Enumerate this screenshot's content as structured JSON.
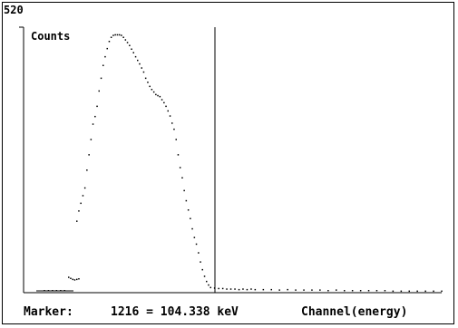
{
  "window": {
    "y_max_label": "520"
  },
  "status": {
    "marker_label": "Marker:",
    "marker_value": "1216 = 104.338 keV",
    "x_axis_label": "Channel(energy)"
  },
  "chart_data": {
    "type": "scatter",
    "title": "",
    "ylabel": "Counts",
    "xlabel": "Channel(energy)",
    "ylim": [
      0,
      520
    ],
    "grid": false,
    "marker": {
      "channel": 1216,
      "energy_kev": 104.338
    },
    "colors": {
      "points": "#000000",
      "axes": "#000000",
      "marker_line": "#000000"
    },
    "points": [
      [
        0.08,
        30
      ],
      [
        0.085,
        28
      ],
      [
        0.09,
        26
      ],
      [
        0.095,
        25
      ],
      [
        0.1,
        26
      ],
      [
        0.105,
        27
      ],
      [
        0.1,
        140
      ],
      [
        0.105,
        160
      ],
      [
        0.11,
        175
      ],
      [
        0.115,
        190
      ],
      [
        0.12,
        205
      ],
      [
        0.125,
        240
      ],
      [
        0.13,
        270
      ],
      [
        0.135,
        300
      ],
      [
        0.14,
        330
      ],
      [
        0.145,
        345
      ],
      [
        0.15,
        365
      ],
      [
        0.155,
        395
      ],
      [
        0.16,
        420
      ],
      [
        0.165,
        445
      ],
      [
        0.17,
        462
      ],
      [
        0.175,
        478
      ],
      [
        0.18,
        492
      ],
      [
        0.185,
        500
      ],
      [
        0.19,
        504
      ],
      [
        0.195,
        505
      ],
      [
        0.2,
        505
      ],
      [
        0.205,
        505
      ],
      [
        0.21,
        504
      ],
      [
        0.215,
        500
      ],
      [
        0.22,
        495
      ],
      [
        0.225,
        490
      ],
      [
        0.23,
        484
      ],
      [
        0.235,
        477
      ],
      [
        0.24,
        470
      ],
      [
        0.245,
        462
      ],
      [
        0.25,
        455
      ],
      [
        0.255,
        448
      ],
      [
        0.26,
        440
      ],
      [
        0.265,
        432
      ],
      [
        0.27,
        420
      ],
      [
        0.275,
        412
      ],
      [
        0.28,
        404
      ],
      [
        0.285,
        398
      ],
      [
        0.29,
        393
      ],
      [
        0.295,
        388
      ],
      [
        0.3,
        386
      ],
      [
        0.305,
        384
      ],
      [
        0.31,
        378
      ],
      [
        0.315,
        372
      ],
      [
        0.32,
        365
      ],
      [
        0.325,
        356
      ],
      [
        0.33,
        346
      ],
      [
        0.335,
        332
      ],
      [
        0.34,
        320
      ],
      [
        0.345,
        300
      ],
      [
        0.35,
        270
      ],
      [
        0.355,
        245
      ],
      [
        0.36,
        225
      ],
      [
        0.365,
        200
      ],
      [
        0.37,
        180
      ],
      [
        0.375,
        162
      ],
      [
        0.38,
        145
      ],
      [
        0.385,
        125
      ],
      [
        0.39,
        108
      ],
      [
        0.395,
        95
      ],
      [
        0.4,
        78
      ],
      [
        0.405,
        60
      ],
      [
        0.41,
        45
      ],
      [
        0.415,
        32
      ],
      [
        0.42,
        22
      ],
      [
        0.425,
        15
      ],
      [
        0.43,
        10
      ],
      [
        0.44,
        9
      ],
      [
        0.45,
        8
      ],
      [
        0.46,
        8
      ],
      [
        0.47,
        7
      ],
      [
        0.48,
        7
      ],
      [
        0.49,
        7
      ],
      [
        0.5,
        6
      ],
      [
        0.51,
        7
      ],
      [
        0.52,
        6
      ],
      [
        0.53,
        7
      ],
      [
        0.54,
        6
      ],
      [
        0.56,
        6
      ],
      [
        0.58,
        6
      ],
      [
        0.6,
        5
      ],
      [
        0.62,
        6
      ],
      [
        0.64,
        5
      ],
      [
        0.66,
        5
      ],
      [
        0.68,
        5
      ],
      [
        0.7,
        5
      ],
      [
        0.72,
        4
      ],
      [
        0.74,
        5
      ],
      [
        0.76,
        4
      ],
      [
        0.78,
        4
      ],
      [
        0.8,
        4
      ],
      [
        0.82,
        4
      ],
      [
        0.84,
        4
      ],
      [
        0.86,
        4
      ],
      [
        0.88,
        3
      ],
      [
        0.9,
        3
      ],
      [
        0.92,
        3
      ],
      [
        0.94,
        3
      ],
      [
        0.96,
        3
      ],
      [
        0.98,
        3
      ],
      [
        1.0,
        3
      ],
      [
        0.02,
        4
      ],
      [
        0.03,
        4
      ],
      [
        0.04,
        4
      ],
      [
        0.05,
        4
      ],
      [
        0.06,
        4
      ],
      [
        0.07,
        4
      ]
    ]
  }
}
